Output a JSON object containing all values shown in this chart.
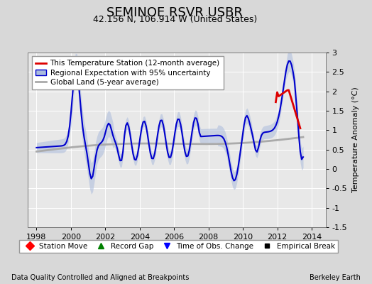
{
  "title": "SEMINOE RSVR USBR",
  "subtitle": "42.156 N, 106.914 W (United States)",
  "ylabel": "Temperature Anomaly (°C)",
  "xlim": [
    1997.5,
    2014.8
  ],
  "ylim": [
    -1.5,
    3.0
  ],
  "yticks": [
    -1.5,
    -1.0,
    -0.5,
    0.0,
    0.5,
    1.0,
    1.5,
    2.0,
    2.5,
    3.0
  ],
  "xticks": [
    1998,
    2000,
    2002,
    2004,
    2006,
    2008,
    2010,
    2012,
    2014
  ],
  "footer_left": "Data Quality Controlled and Aligned at Breakpoints",
  "footer_right": "Berkeley Earth",
  "bg_color": "#d8d8d8",
  "plot_bg_color": "#e8e8e8",
  "grid_color": "#ffffff",
  "blue_line_color": "#0000cc",
  "blue_fill_color": "#aabbdd",
  "gray_line_color": "#aaaaaa",
  "red_line_color": "#dd0000",
  "title_fontsize": 13,
  "subtitle_fontsize": 9,
  "tick_fontsize": 8,
  "ylabel_fontsize": 8,
  "legend_fontsize": 7.5,
  "footer_fontsize": 7
}
